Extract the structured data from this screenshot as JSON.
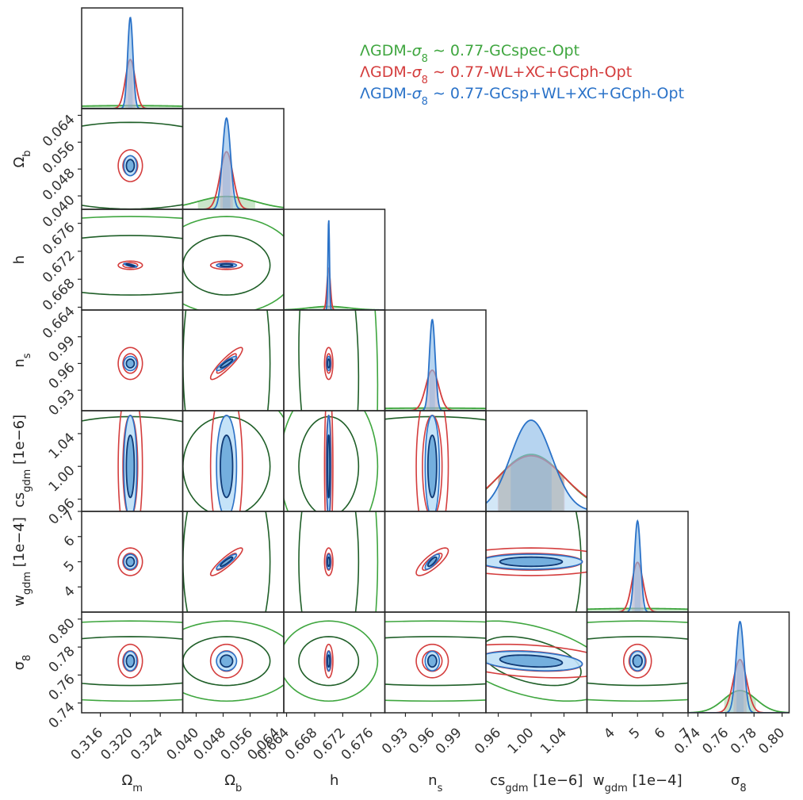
{
  "chart_data": {
    "type": "corner",
    "parameters": [
      {
        "key": "Om",
        "label": "Ω",
        "sub": "m",
        "center": 0.32,
        "range": [
          0.3135,
          0.327
        ],
        "ticks": [
          0.316,
          0.32,
          0.324
        ],
        "tick_labels": [
          "0.316",
          "0.320",
          "0.324"
        ]
      },
      {
        "key": "Ob",
        "label": "Ω",
        "sub": "b",
        "center": 0.049,
        "range": [
          0.036,
          0.066
        ],
        "ticks": [
          0.04,
          0.048,
          0.056,
          0.064
        ],
        "tick_labels": [
          "0.040",
          "0.048",
          "0.056",
          "0.064"
        ]
      },
      {
        "key": "h",
        "label": "h",
        "sub": "",
        "center": 0.67,
        "range": [
          0.6636,
          0.678
        ],
        "ticks": [
          0.664,
          0.668,
          0.672,
          0.676
        ],
        "tick_labels": [
          "0.664",
          "0.668",
          "0.672",
          "0.676"
        ]
      },
      {
        "key": "ns",
        "label": "n",
        "sub": "s",
        "center": 0.96,
        "range": [
          0.907,
          1.02
        ],
        "ticks": [
          0.93,
          0.96,
          0.99
        ],
        "tick_labels": [
          "0.93",
          "0.96",
          "0.99"
        ]
      },
      {
        "key": "csgdm",
        "label": "cs",
        "sub": "gdm",
        "suffix": " [1e−6]",
        "center": 1.0,
        "range": [
          0.945,
          1.068
        ],
        "ticks": [
          0.96,
          1.0,
          1.04
        ],
        "tick_labels": [
          "0.96",
          "1.00",
          "1.04"
        ]
      },
      {
        "key": "wgdm",
        "label": "w",
        "sub": "gdm",
        "suffix": " [1e−4]",
        "center": 5.0,
        "range": [
          3.0,
          7.0
        ],
        "ticks": [
          4,
          5,
          6,
          7
        ],
        "tick_labels": [
          "4",
          "5",
          "6",
          "7"
        ]
      },
      {
        "key": "s8",
        "label": "σ",
        "sub": "8",
        "center": 0.77,
        "range": [
          0.733,
          0.805
        ],
        "ticks": [
          0.74,
          0.76,
          0.78,
          0.8
        ],
        "tick_labels": [
          "0.74",
          "0.76",
          "0.78",
          "0.80"
        ]
      }
    ],
    "series": [
      {
        "name": "ΛGDM-σ8∼0.77-GCspec-Opt",
        "legend_parts": [
          "ΛGDM-",
          "σ",
          "8",
          " ∼ 0.77-GCspec-Opt"
        ],
        "color": "#3fa63f",
        "inner_color": "#1f5f28",
        "filled": false,
        "sigma": [
          0.0105,
          0.0085,
          0.0028,
          0.11,
          0.04,
          3.0,
          0.0115
        ],
        "rho": [
          [
            1,
            0,
            0,
            0,
            0,
            0,
            0
          ],
          [
            0,
            1,
            0,
            0,
            0,
            0,
            0
          ],
          [
            0,
            0,
            1,
            -0.1,
            0,
            0,
            0
          ],
          [
            0,
            0,
            -0.1,
            1,
            0,
            0,
            0
          ],
          [
            0,
            0,
            0,
            0,
            1,
            0,
            -0.45
          ],
          [
            0,
            0,
            0,
            0,
            0,
            1,
            0
          ],
          [
            0,
            0,
            0,
            0,
            -0.45,
            0,
            1
          ]
        ]
      },
      {
        "name": "ΛGDM-σ8∼0.77-WL+XC+GCph-Opt",
        "legend_parts": [
          "ΛGDM-",
          "σ",
          "8",
          " ∼ 0.77-WL+XC+GCph-Opt"
        ],
        "color": "#d43d3d",
        "inner_color": "#d43d3d",
        "filled": false,
        "sigma": [
          0.00065,
          0.0019,
          0.00024,
          0.0072,
          0.041,
          0.22,
          0.0048
        ],
        "rho": [
          [
            1,
            0,
            0,
            0,
            0,
            0,
            0
          ],
          [
            0,
            1,
            0,
            0.9,
            0,
            0.9,
            0
          ],
          [
            0,
            0,
            1,
            0,
            0,
            0,
            0
          ],
          [
            0,
            0.9,
            0,
            1,
            0,
            0.8,
            0
          ],
          [
            0,
            0,
            0,
            0,
            1,
            0,
            -0.3
          ],
          [
            0,
            0.9,
            0,
            0.8,
            0,
            1,
            0
          ],
          [
            0,
            0,
            0,
            0,
            -0.3,
            0,
            1
          ]
        ]
      },
      {
        "name": "ΛGDM-σ8∼0.77-GCsp+WL+XC+GCph-Opt",
        "legend_parts": [
          "ΛGDM-",
          "σ",
          "8",
          " ∼ 0.77-GCsp+WL+XC+GCph-Opt"
        ],
        "color": "#2a72c8",
        "inner_color": "#103a75",
        "filled": true,
        "sigma": [
          0.00035,
          0.0012,
          0.00011,
          0.0032,
          0.025,
          0.12,
          0.0028
        ],
        "rho": [
          [
            1,
            0,
            -0.8,
            0,
            0,
            0,
            0
          ],
          [
            0,
            1,
            0,
            0.9,
            0,
            0.9,
            0
          ],
          [
            -0.8,
            0,
            1,
            0,
            0,
            0,
            0
          ],
          [
            0,
            0.9,
            0,
            1,
            0,
            0.8,
            0
          ],
          [
            0,
            0,
            0,
            0,
            1,
            0,
            -0.3
          ],
          [
            0,
            0.9,
            0,
            0.8,
            0,
            1,
            0
          ],
          [
            0,
            0,
            0,
            0,
            -0.3,
            0,
            1
          ]
        ]
      }
    ]
  }
}
